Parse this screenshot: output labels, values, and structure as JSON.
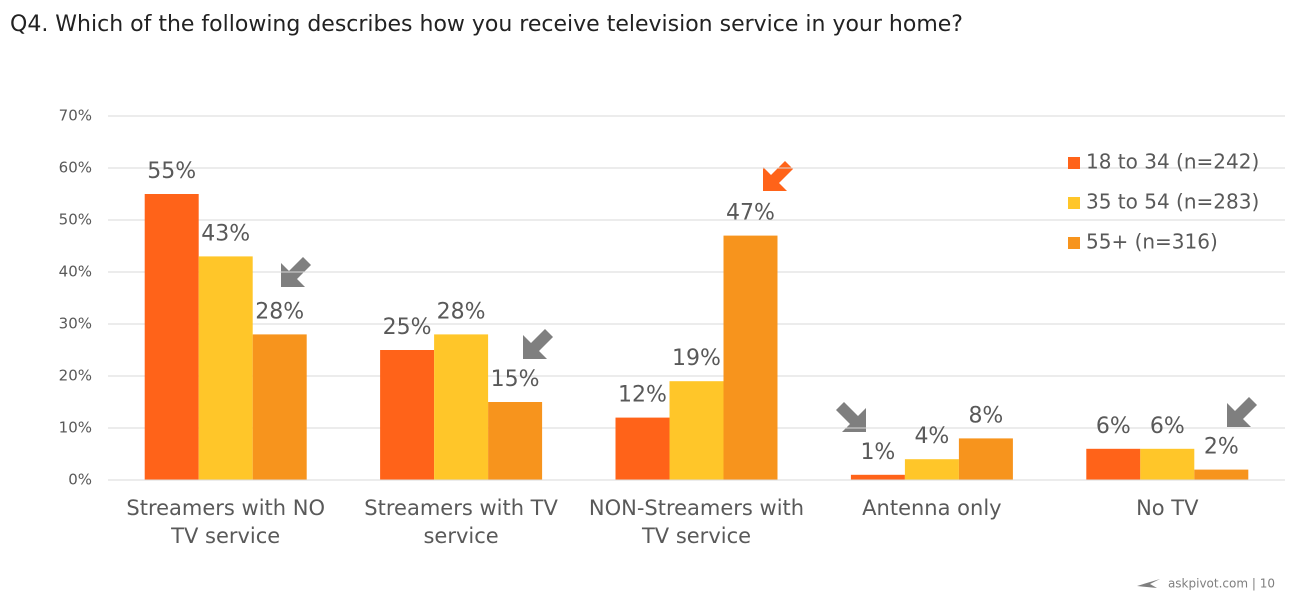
{
  "chart_data": {
    "type": "bar",
    "title": "Q4. Which of the following describes how you receive television service in your home?",
    "categories": [
      "Streamers with NO TV service",
      "Streamers with TV service",
      "NON-Streamers with TV service",
      "Antenna only",
      "No TV"
    ],
    "series": [
      {
        "name": "18 to 34 (n=242)",
        "color": "#ff6319",
        "values": [
          55,
          25,
          12,
          1,
          6
        ],
        "value_labels": [
          "55%",
          "25%",
          "12%",
          "1%",
          "6%"
        ]
      },
      {
        "name": "35 to 54 (n=283)",
        "color": "#ffc629",
        "values": [
          43,
          28,
          19,
          4,
          6
        ],
        "value_labels": [
          "43%",
          "28%",
          "19%",
          "4%",
          "6%"
        ]
      },
      {
        "name": "55+ (n=316)",
        "color": "#f7941d",
        "values": [
          28,
          15,
          47,
          8,
          2
        ],
        "value_labels": [
          "28%",
          "15%",
          "47%",
          "8%",
          "2%"
        ]
      }
    ],
    "ylim": [
      0,
      70
    ],
    "yticks": [
      {
        "value": 0,
        "label": "0%"
      },
      {
        "value": 10,
        "label": "10%"
      },
      {
        "value": 20,
        "label": "20%"
      },
      {
        "value": 30,
        "label": "30%"
      },
      {
        "value": 40,
        "label": "40%"
      },
      {
        "value": 50,
        "label": "50%"
      },
      {
        "value": 60,
        "label": "60%"
      },
      {
        "value": 70,
        "label": "70%"
      }
    ],
    "grid": true,
    "legend": "upper right",
    "footer": "askpivot.com  |  10"
  }
}
